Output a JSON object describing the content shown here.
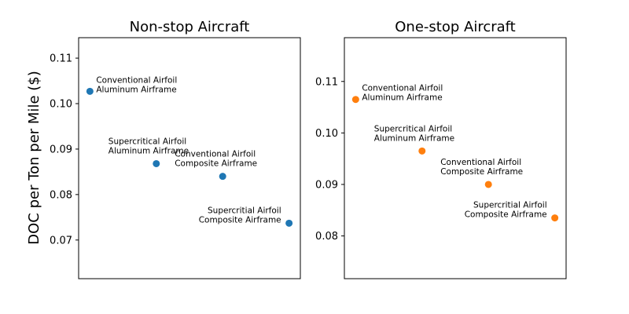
{
  "figure": {
    "ylabel": "DOC per Ton per Mile ($)"
  },
  "chart_data": [
    {
      "type": "scatter",
      "title": "Non-stop Aircraft",
      "xlabel": "",
      "ylabel": "DOC per Ton per Mile ($)",
      "ylim": [
        0.0615,
        0.1145
      ],
      "xlim": [
        0.83,
        4.17
      ],
      "y_ticks": [
        0.07,
        0.08,
        0.09,
        0.1,
        0.11
      ],
      "y_tick_labels": [
        "0.07",
        "0.08",
        "0.09",
        "0.10",
        "0.11"
      ],
      "x_ticks_visible": false,
      "grid": false,
      "color": "#1f77b4",
      "points": [
        {
          "x": 1,
          "y": 0.1027,
          "label": [
            "Conventional Airfoil",
            "Aluminum Airframe"
          ],
          "label_pos": "right"
        },
        {
          "x": 2,
          "y": 0.0868,
          "label": [
            "Supercritical Airfoil",
            "Aluminum Airframe"
          ],
          "label_pos": "above"
        },
        {
          "x": 3,
          "y": 0.084,
          "label": [
            "Conventional Airfoil",
            "Composite Airframe"
          ],
          "label_pos": "above"
        },
        {
          "x": 4,
          "y": 0.0737,
          "label": [
            "Supercritial Airfoil",
            "Composite Airframe"
          ],
          "label_pos": "left"
        }
      ]
    },
    {
      "type": "scatter",
      "title": "One-stop Aircraft",
      "xlabel": "",
      "ylabel": "",
      "ylim": [
        0.0717,
        0.1185
      ],
      "xlim": [
        0.83,
        4.17
      ],
      "y_ticks": [
        0.08,
        0.09,
        0.1,
        0.11
      ],
      "y_tick_labels": [
        "0.08",
        "0.09",
        "0.10",
        "0.11"
      ],
      "x_ticks_visible": false,
      "grid": false,
      "color": "#ff7f0e",
      "points": [
        {
          "x": 1,
          "y": 0.1065,
          "label": [
            "Conventional Airfoil",
            "Aluminum Airframe"
          ],
          "label_pos": "right"
        },
        {
          "x": 2,
          "y": 0.0965,
          "label": [
            "Supercritical Airfoil",
            "Aluminum Airframe"
          ],
          "label_pos": "above"
        },
        {
          "x": 3,
          "y": 0.09,
          "label": [
            "Conventional Airfoil",
            "Composite Airframe"
          ],
          "label_pos": "above"
        },
        {
          "x": 4,
          "y": 0.0835,
          "label": [
            "Supercritial Airfoil",
            "Composite Airframe"
          ],
          "label_pos": "left"
        }
      ]
    }
  ]
}
